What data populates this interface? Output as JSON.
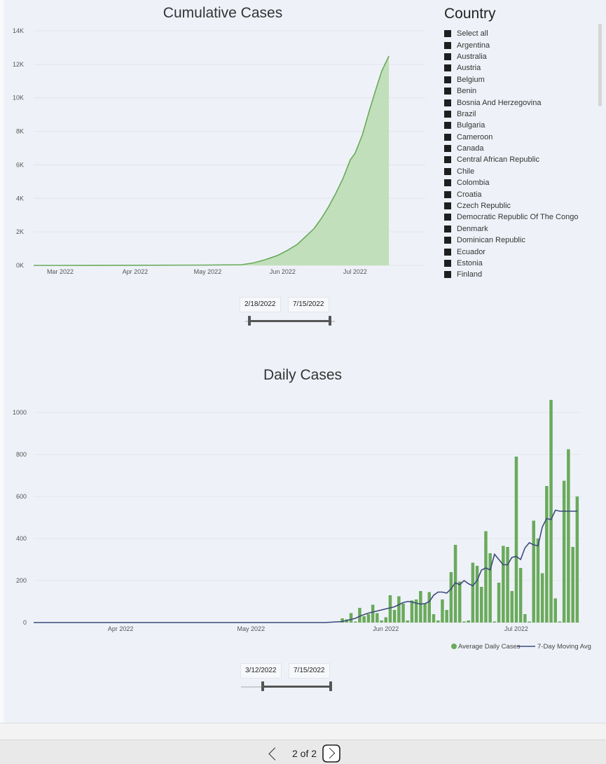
{
  "charts": {
    "cumulative": {
      "title": "Cumulative Cases",
      "y_ticks": [
        "0K",
        "2K",
        "4K",
        "6K",
        "8K",
        "10K",
        "12K",
        "14K"
      ],
      "x_ticks": [
        "Mar 2022",
        "Apr 2022",
        "May 2022",
        "Jun 2022",
        "Jul 2022"
      ],
      "date_start": "2/18/2022",
      "date_end": "7/15/2022"
    },
    "daily": {
      "title": "Daily Cases",
      "y_ticks": [
        "0",
        "200",
        "400",
        "600",
        "800",
        "1000"
      ],
      "x_ticks": [
        "Apr 2022",
        "May 2022",
        "Jun 2022",
        "Jul 2022"
      ],
      "legend": {
        "bars": "Average Daily Cases",
        "line": "7-Day Moving Avg"
      },
      "date_start": "3/12/2022",
      "date_end": "7/15/2022"
    }
  },
  "chart_data": [
    {
      "type": "area",
      "title": "Cumulative Cases",
      "xlabel": "",
      "ylabel": "",
      "ylim": [
        0,
        14000
      ],
      "x": [
        "2022-02-18",
        "2022-03-01",
        "2022-04-01",
        "2022-05-01",
        "2022-05-15",
        "2022-05-20",
        "2022-05-25",
        "2022-05-30",
        "2022-06-03",
        "2022-06-07",
        "2022-06-10",
        "2022-06-14",
        "2022-06-17",
        "2022-06-20",
        "2022-06-23",
        "2022-06-26",
        "2022-06-29",
        "2022-07-01",
        "2022-07-04",
        "2022-07-07",
        "2022-07-10",
        "2022-07-12",
        "2022-07-15"
      ],
      "values": [
        0,
        0,
        10,
        20,
        40,
        150,
        350,
        600,
        900,
        1250,
        1650,
        2200,
        2800,
        3500,
        4300,
        5200,
        6300,
        6700,
        7800,
        9300,
        10700,
        11600,
        12500
      ],
      "color": "#6aaa5c",
      "grid": true
    },
    {
      "type": "bar",
      "title": "Daily Cases",
      "xlabel": "",
      "ylabel": "",
      "ylim": [
        0,
        1060
      ],
      "grid": true,
      "legend_position": "bottom-right",
      "categories": [
        "2022-05-22",
        "2022-05-23",
        "2022-05-24",
        "2022-05-25",
        "2022-05-26",
        "2022-05-27",
        "2022-05-28",
        "2022-05-29",
        "2022-05-30",
        "2022-05-31",
        "2022-06-01",
        "2022-06-02",
        "2022-06-03",
        "2022-06-04",
        "2022-06-05",
        "2022-06-06",
        "2022-06-07",
        "2022-06-08",
        "2022-06-09",
        "2022-06-10",
        "2022-06-11",
        "2022-06-12",
        "2022-06-13",
        "2022-06-14",
        "2022-06-15",
        "2022-06-16",
        "2022-06-17",
        "2022-06-18",
        "2022-06-19",
        "2022-06-20",
        "2022-06-21",
        "2022-06-22",
        "2022-06-23",
        "2022-06-24",
        "2022-06-25",
        "2022-06-26",
        "2022-06-27",
        "2022-06-28",
        "2022-06-29",
        "2022-06-30",
        "2022-07-01",
        "2022-07-02",
        "2022-07-03",
        "2022-07-04",
        "2022-07-05",
        "2022-07-06",
        "2022-07-07",
        "2022-07-08",
        "2022-07-09",
        "2022-07-10",
        "2022-07-11",
        "2022-07-12",
        "2022-07-13",
        "2022-07-14",
        "2022-07-15"
      ],
      "series": [
        {
          "name": "Average Daily Cases",
          "color": "#6aaa5c",
          "values": [
            20,
            15,
            45,
            5,
            70,
            30,
            40,
            85,
            45,
            10,
            25,
            130,
            60,
            125,
            90,
            10,
            105,
            110,
            150,
            90,
            145,
            40,
            10,
            110,
            60,
            240,
            370,
            195,
            5,
            10,
            285,
            270,
            170,
            435,
            330,
            5,
            190,
            365,
            360,
            150,
            790,
            260,
            40,
            5,
            485,
            400,
            235,
            650,
            1060,
            115,
            5,
            675,
            825,
            360,
            600
          ]
        },
        {
          "name": "7-Day Moving Avg",
          "color": "#3d4a7a",
          "values": [
            5,
            10,
            15,
            20,
            30,
            38,
            45,
            50,
            55,
            60,
            65,
            70,
            75,
            85,
            95,
            100,
            98,
            92,
            88,
            90,
            100,
            130,
            145,
            145,
            140,
            160,
            190,
            180,
            200,
            185,
            175,
            200,
            250,
            260,
            250,
            325,
            300,
            275,
            275,
            310,
            315,
            300,
            355,
            380,
            370,
            365,
            455,
            495,
            490,
            535,
            530,
            530,
            530,
            530,
            530
          ]
        }
      ]
    }
  ],
  "slicer": {
    "title": "Country",
    "items": [
      "Select all",
      "Argentina",
      "Australia",
      "Austria",
      "Belgium",
      "Benin",
      "Bosnia And Herzegovina",
      "Brazil",
      "Bulgaria",
      "Cameroon",
      "Canada",
      "Central African Republic",
      "Chile",
      "Colombia",
      "Croatia",
      "Czech Republic",
      "Democratic Republic Of The Congo",
      "Denmark",
      "Dominican Republic",
      "Ecuador",
      "Estonia",
      "Finland"
    ]
  },
  "pager": {
    "label": "2 of 2"
  }
}
